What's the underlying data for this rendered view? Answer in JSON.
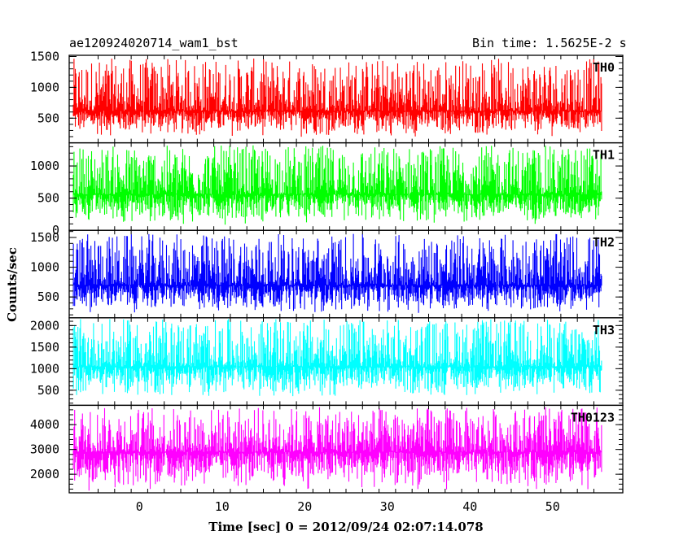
{
  "header": {
    "title": "ae120924020714_wam1_bst",
    "bin_time": "Bin time: 1.5625E-2 s"
  },
  "axes": {
    "xlabel": "Time [sec] 0 = 2012/09/24 02:07:14.078",
    "ylabel": "Counts/sec",
    "x_ticks": [
      "0",
      "10",
      "20",
      "30",
      "40",
      "50"
    ]
  },
  "chart_data": {
    "type": "line",
    "title": "ae120924020714_wam1_bst",
    "xlabel": "Time [sec] 0 = 2012/09/24 02:07:14.078",
    "ylabel": "Counts/sec",
    "xlim": [
      -8.5,
      58.5
    ],
    "x_range_data": [
      -8,
      56
    ],
    "x_ticks": [
      0,
      10,
      20,
      30,
      40,
      50
    ],
    "bin_time_s": 0.015625,
    "grid": false,
    "panels": [
      {
        "name": "TH0",
        "color": "#ff0000",
        "ylim": [
          100,
          1520
        ],
        "yticks": [
          500,
          1000,
          1500
        ],
        "baseline": 620,
        "range_low": 180,
        "range_high": 1470
      },
      {
        "name": "TH1",
        "color": "#00ff00",
        "ylim": [
          0,
          1360
        ],
        "yticks": [
          0,
          500,
          1000
        ],
        "baseline": 560,
        "range_low": 80,
        "range_high": 1320
      },
      {
        "name": "TH2",
        "color": "#0000ff",
        "ylim": [
          150,
          1620
        ],
        "yticks": [
          500,
          1000,
          1500
        ],
        "baseline": 700,
        "range_low": 220,
        "range_high": 1560
      },
      {
        "name": "TH3",
        "color": "#00ffff",
        "ylim": [
          150,
          2180
        ],
        "yticks": [
          500,
          1000,
          1500,
          2000
        ],
        "baseline": 1050,
        "range_low": 320,
        "range_high": 2150
      },
      {
        "name": "TH0123",
        "color": "#ff00ff",
        "ylim": [
          1250,
          4780
        ],
        "yticks": [
          2000,
          3000,
          4000
        ],
        "baseline": 2900,
        "range_low": 1320,
        "range_high": 4700
      }
    ]
  }
}
